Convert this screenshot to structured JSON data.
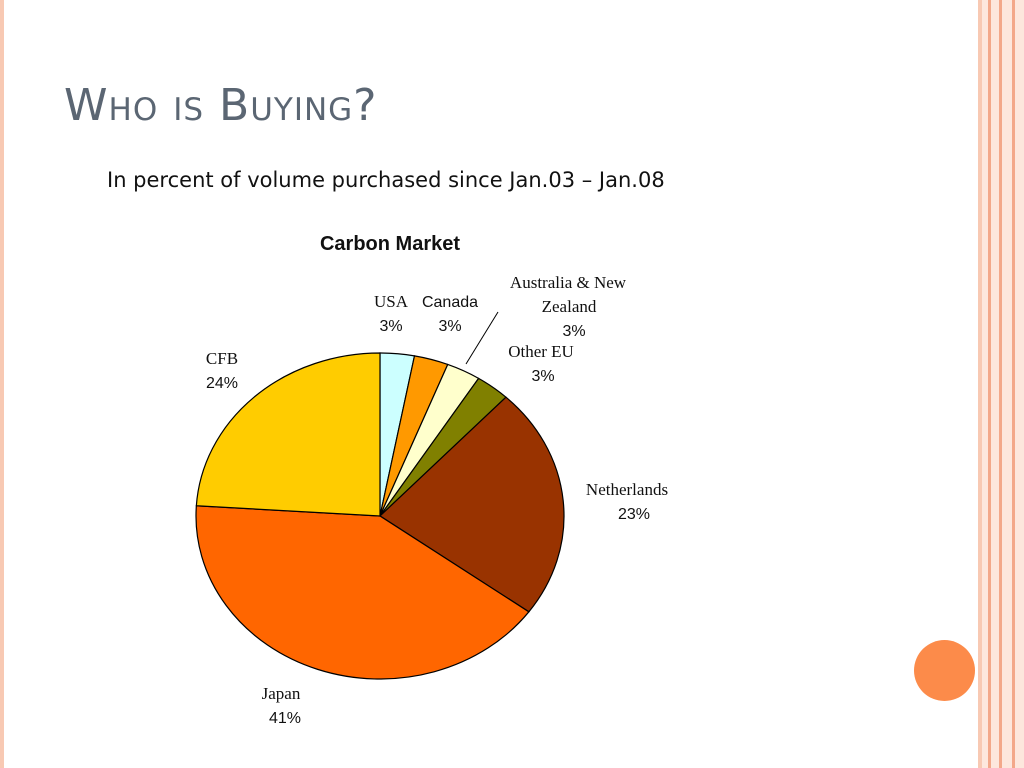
{
  "slide": {
    "title": "Who is Buying?",
    "subtitle": "In percent of volume purchased since Jan.03 – Jan.08"
  },
  "colors": {
    "title": "#5b6673",
    "accent_dot": "#fc8b4a",
    "stripe": "#f3a88a"
  },
  "chart_data": {
    "type": "pie",
    "title": "Carbon Market",
    "slices": [
      {
        "name": "USA",
        "pct_label": "3%",
        "value": 3,
        "color": "#ccffff"
      },
      {
        "name": "Canada",
        "pct_label": "3%",
        "value": 3,
        "color": "#ff9900"
      },
      {
        "name": "Australia & New Zealand",
        "pct_label": "3%",
        "value": 3,
        "color": "#ffffcc"
      },
      {
        "name": "Other EU",
        "pct_label": "3%",
        "value": 3,
        "color": "#808000"
      },
      {
        "name": "Netherlands",
        "pct_label": "23%",
        "value": 23,
        "color": "#993300"
      },
      {
        "name": "Japan",
        "pct_label": "41%",
        "value": 41,
        "color": "#ff6600"
      },
      {
        "name": "CFB",
        "pct_label": "24%",
        "value": 24,
        "color": "#ffcc00"
      }
    ],
    "label_lines": {
      "australia_new_zealand": [
        "Australia & New",
        "Zealand"
      ]
    }
  }
}
